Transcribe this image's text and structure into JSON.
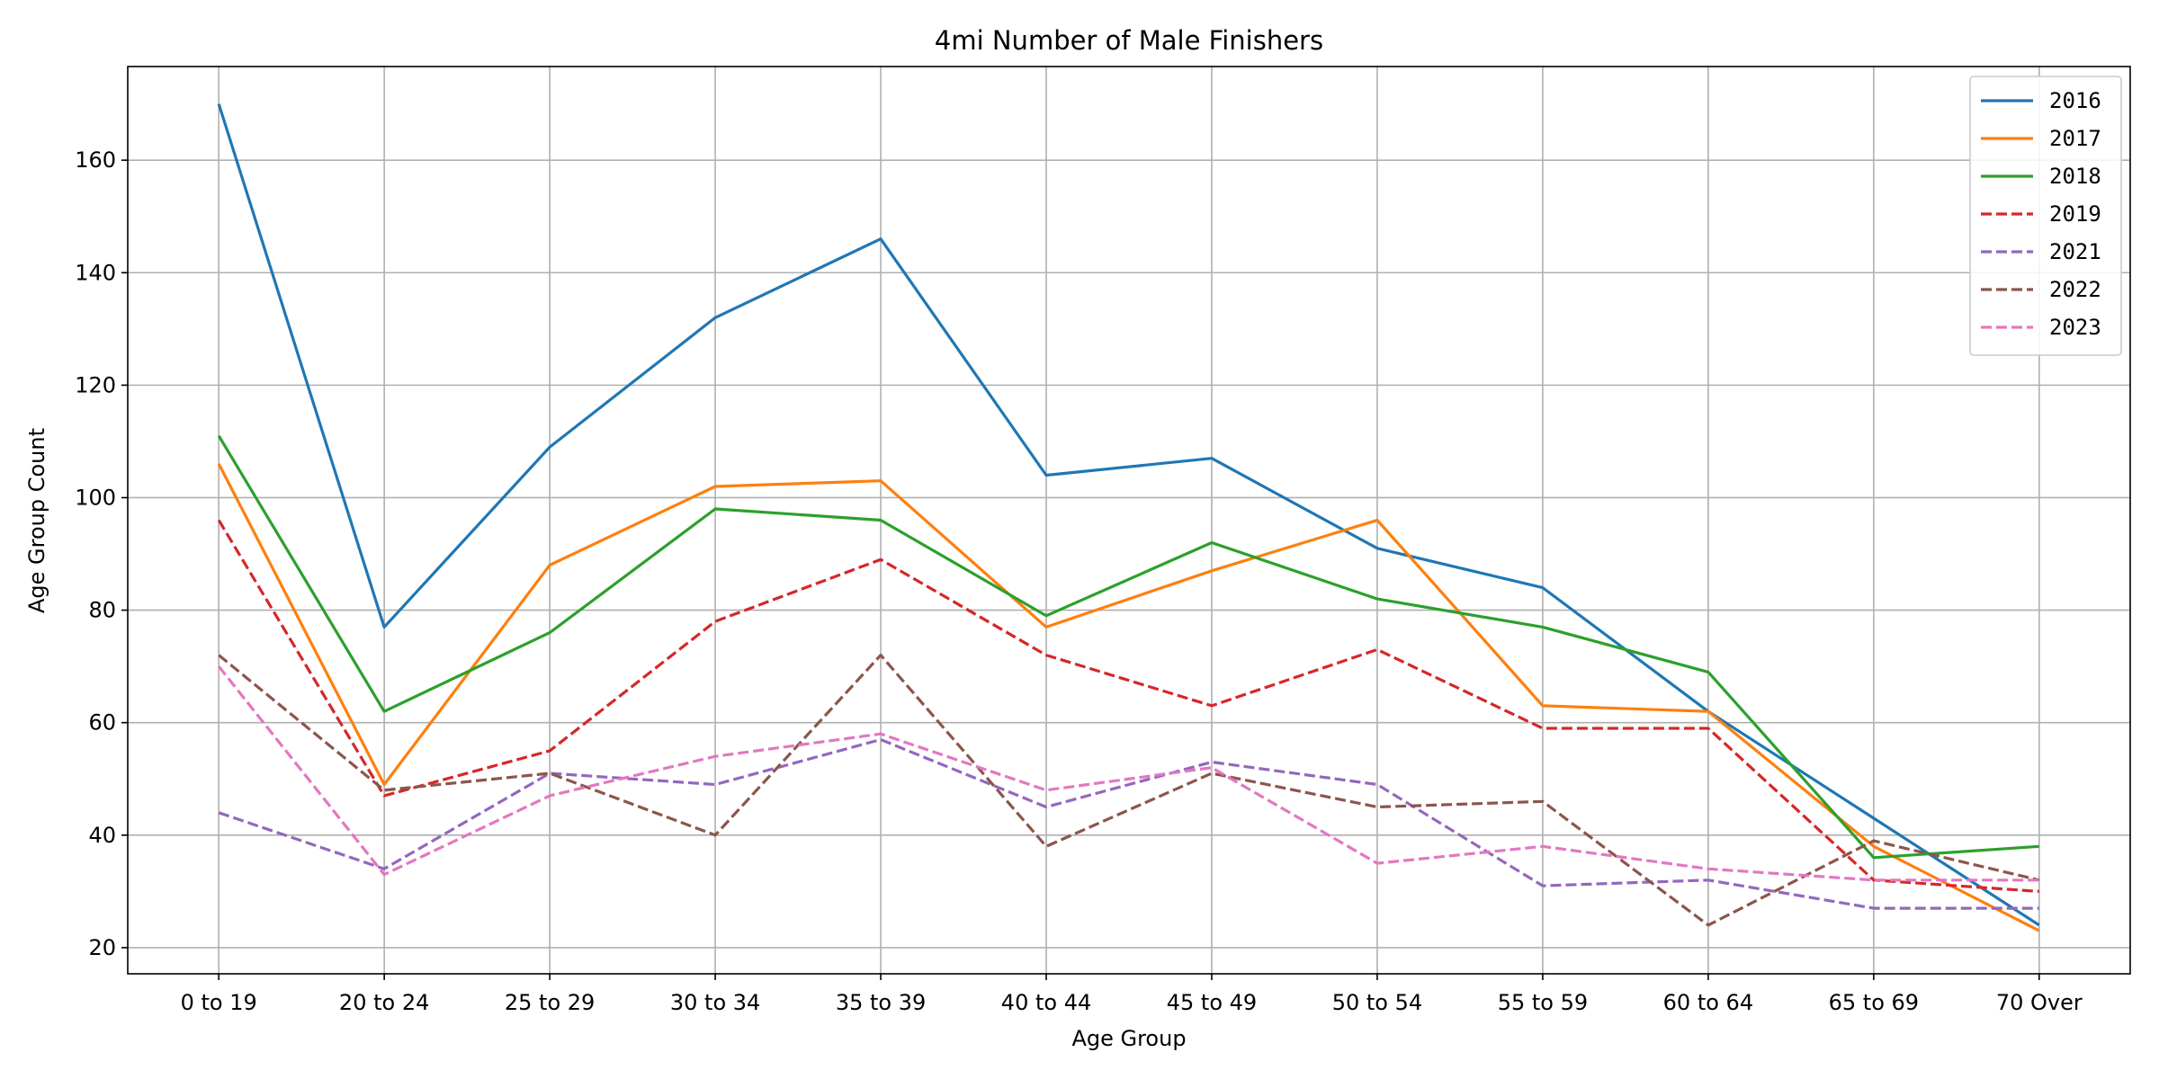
{
  "chart_data": {
    "type": "line",
    "title": "4mi Number of Male Finishers",
    "xlabel": "Age Group",
    "ylabel": "Age Group Count",
    "categories": [
      "0 to 19",
      "20 to 24",
      "25 to 29",
      "30 to 34",
      "35 to 39",
      "40 to 44",
      "45 to 49",
      "50 to 54",
      "55 to 59",
      "60 to 64",
      "65 to 69",
      "70 Over"
    ],
    "ylim": [
      15.35,
      176.65
    ],
    "yticks": [
      20,
      40,
      60,
      80,
      100,
      120,
      140,
      160
    ],
    "grid": true,
    "legend_position": "top-right",
    "series": [
      {
        "name": "2016",
        "color": "#1f77b4",
        "style": "solid",
        "values": [
          170,
          77,
          109,
          132,
          146,
          104,
          107,
          91,
          84,
          62,
          43,
          24
        ]
      },
      {
        "name": "2017",
        "color": "#ff7f0e",
        "style": "solid",
        "values": [
          106,
          49,
          88,
          102,
          103,
          77,
          87,
          96,
          63,
          62,
          38,
          23
        ]
      },
      {
        "name": "2018",
        "color": "#2ca02c",
        "style": "solid",
        "values": [
          111,
          62,
          76,
          98,
          96,
          79,
          92,
          82,
          77,
          69,
          36,
          38
        ]
      },
      {
        "name": "2019",
        "color": "#d62728",
        "style": "dashed",
        "values": [
          96,
          47,
          55,
          78,
          89,
          72,
          63,
          73,
          59,
          59,
          32,
          30
        ]
      },
      {
        "name": "2021",
        "color": "#9467bd",
        "style": "dashed",
        "values": [
          44,
          34,
          51,
          49,
          57,
          45,
          53,
          49,
          31,
          32,
          27,
          27
        ]
      },
      {
        "name": "2022",
        "color": "#8c564b",
        "style": "dashed",
        "values": [
          72,
          48,
          51,
          40,
          72,
          38,
          51,
          45,
          46,
          24,
          39,
          32
        ]
      },
      {
        "name": "2023",
        "color": "#e377c2",
        "style": "dashed",
        "values": [
          70,
          33,
          47,
          54,
          58,
          48,
          52,
          35,
          38,
          34,
          32,
          32
        ]
      }
    ]
  }
}
